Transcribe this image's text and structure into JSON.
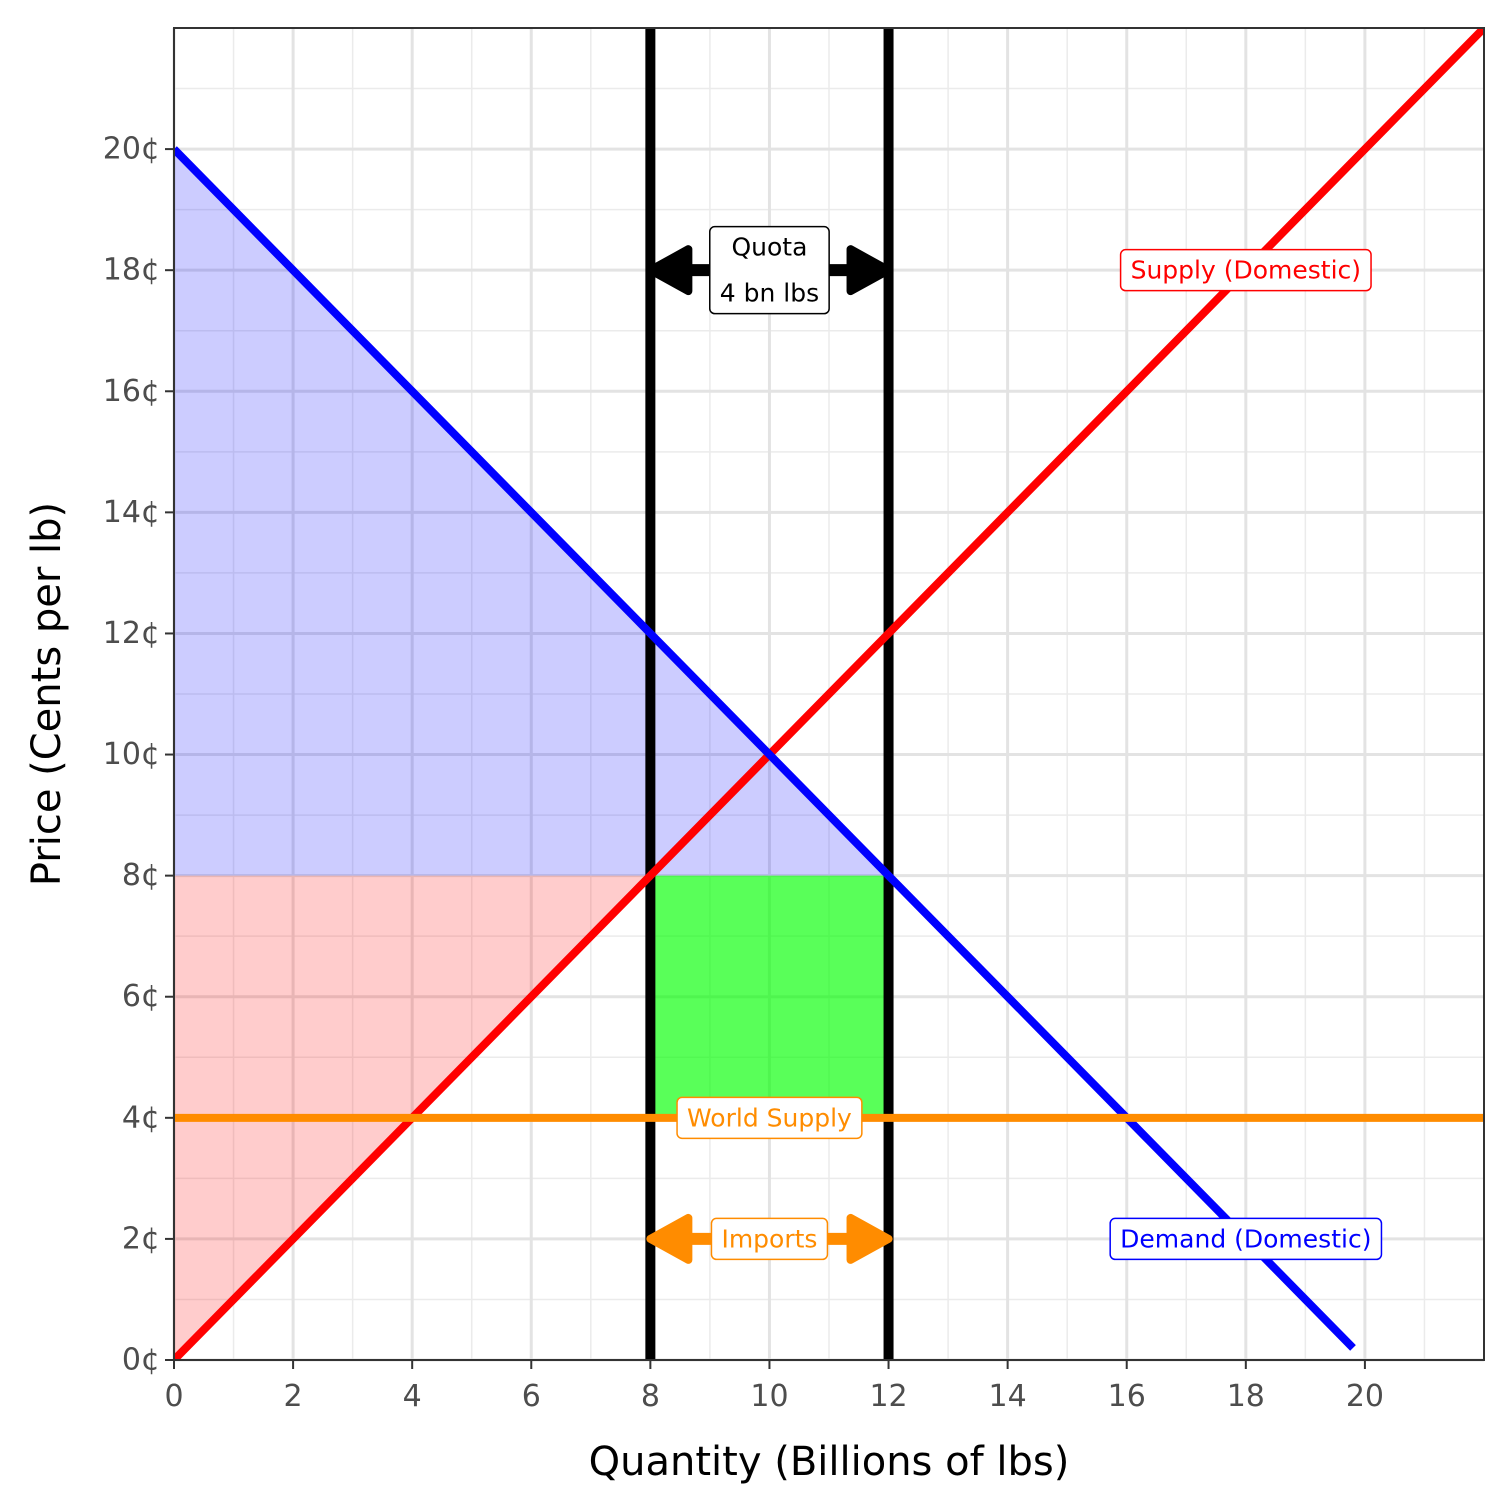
{
  "chart_data": {
    "type": "line",
    "xlabel": "Quantity (Billions of lbs)",
    "ylabel": "Price (Cents per lb)",
    "xlim": [
      0,
      22
    ],
    "ylim": [
      0,
      22
    ],
    "x_ticks": [
      0,
      2,
      4,
      6,
      8,
      10,
      12,
      14,
      16,
      18,
      20
    ],
    "y_ticks": [
      0,
      2,
      4,
      6,
      8,
      10,
      12,
      14,
      16,
      18,
      20
    ],
    "y_tick_suffix": "¢",
    "grid": true,
    "series": [
      {
        "name": "Supply (Domestic)",
        "color": "#ff0000",
        "points": [
          [
            0,
            0
          ],
          [
            22,
            22
          ]
        ]
      },
      {
        "name": "Demand (Domestic)",
        "color": "#0000ff",
        "points": [
          [
            0,
            20
          ],
          [
            19.8,
            0.2
          ]
        ]
      },
      {
        "name": "World Supply",
        "color": "#ff8c00",
        "points": [
          [
            0,
            4
          ],
          [
            22,
            4
          ]
        ]
      }
    ],
    "quota_bounds": [
      8,
      12
    ],
    "shaded_regions": [
      {
        "role": "consumer surplus",
        "color": "#0000ff",
        "opacity": 0.2,
        "polygon": [
          [
            0,
            20
          ],
          [
            0,
            8
          ],
          [
            12,
            8
          ]
        ]
      },
      {
        "role": "producer surplus",
        "color": "#ff0000",
        "opacity": 0.2,
        "polygon": [
          [
            0,
            8
          ],
          [
            8,
            8
          ],
          [
            0,
            0
          ]
        ]
      },
      {
        "role": "quota rent",
        "color": "#00ff00",
        "opacity": 0.65,
        "polygon": [
          [
            8,
            4
          ],
          [
            12,
            4
          ],
          [
            12,
            8
          ],
          [
            8,
            8
          ]
        ]
      }
    ],
    "arrows": [
      {
        "color": "#000000",
        "from": [
          8,
          18
        ],
        "to": [
          12,
          18
        ]
      },
      {
        "color": "#ff8c00",
        "from": [
          8,
          2
        ],
        "to": [
          12,
          2
        ]
      }
    ],
    "annotations": [
      {
        "lines": [
          "Quota",
          "4 bn lbs"
        ],
        "x": 10,
        "y": 18,
        "color": "#000000"
      },
      {
        "lines": [
          "Supply (Domestic)"
        ],
        "x": 18,
        "y": 18,
        "color": "#ff0000"
      },
      {
        "lines": [
          "World Supply"
        ],
        "x": 10,
        "y": 4,
        "color": "#ff8c00"
      },
      {
        "lines": [
          "Imports"
        ],
        "x": 10,
        "y": 2,
        "color": "#ff8c00"
      },
      {
        "lines": [
          "Demand (Domestic)"
        ],
        "x": 18,
        "y": 2,
        "color": "#0000ff"
      }
    ]
  }
}
